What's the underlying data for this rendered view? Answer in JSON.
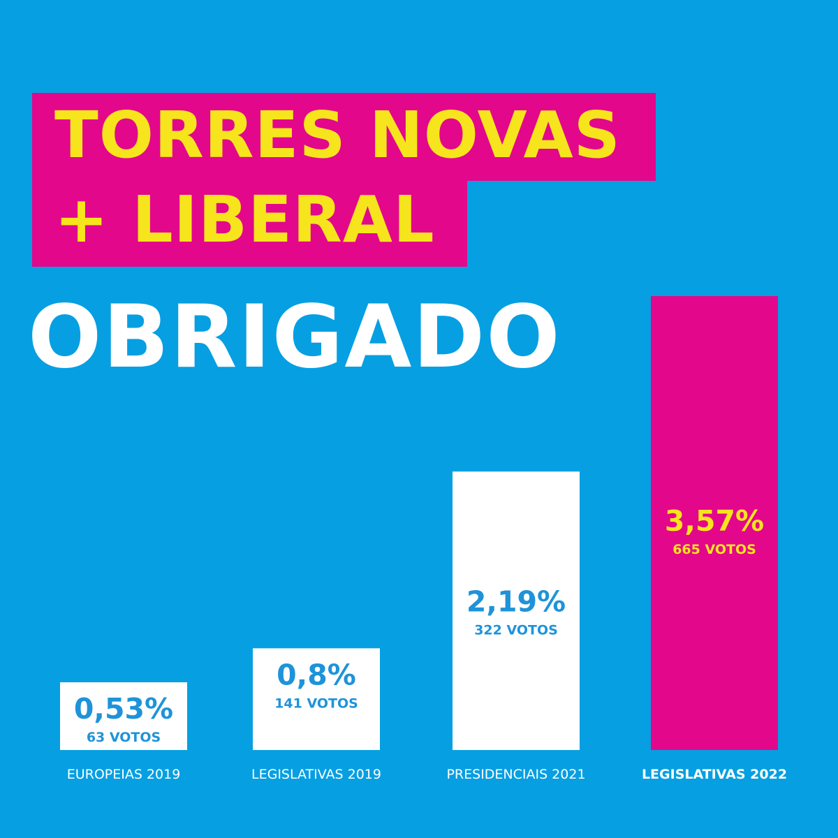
{
  "header": {
    "title_line1": "TORRES NOVAS",
    "title_line2": "+ LIBERAL",
    "thanks": "OBRIGADO"
  },
  "colors": {
    "background": "#069fe2",
    "magenta": "#e3078c",
    "yellow": "#f6e51d",
    "white": "#ffffff",
    "blue_text": "#1e93d9"
  },
  "chart_data": {
    "type": "bar",
    "categories": [
      "EUROPEIAS 2019",
      "LEGISLATIVAS 2019",
      "PRESIDENCIAIS 2021",
      "LEGISLATIVAS 2022"
    ],
    "values": [
      0.53,
      0.8,
      2.19,
      3.57
    ],
    "value_labels": [
      "0,53%",
      "0,8%",
      "2,19%",
      "3,57%"
    ],
    "votes": [
      63,
      141,
      322,
      665
    ],
    "vote_labels": [
      "63 VOTOS",
      "141 VOTOS",
      "322 VOTOS",
      "665 VOTOS"
    ],
    "highlight_index": 3,
    "ylim": [
      0,
      3.57
    ],
    "grid": false,
    "title": "",
    "xlabel": "",
    "ylabel": ""
  }
}
